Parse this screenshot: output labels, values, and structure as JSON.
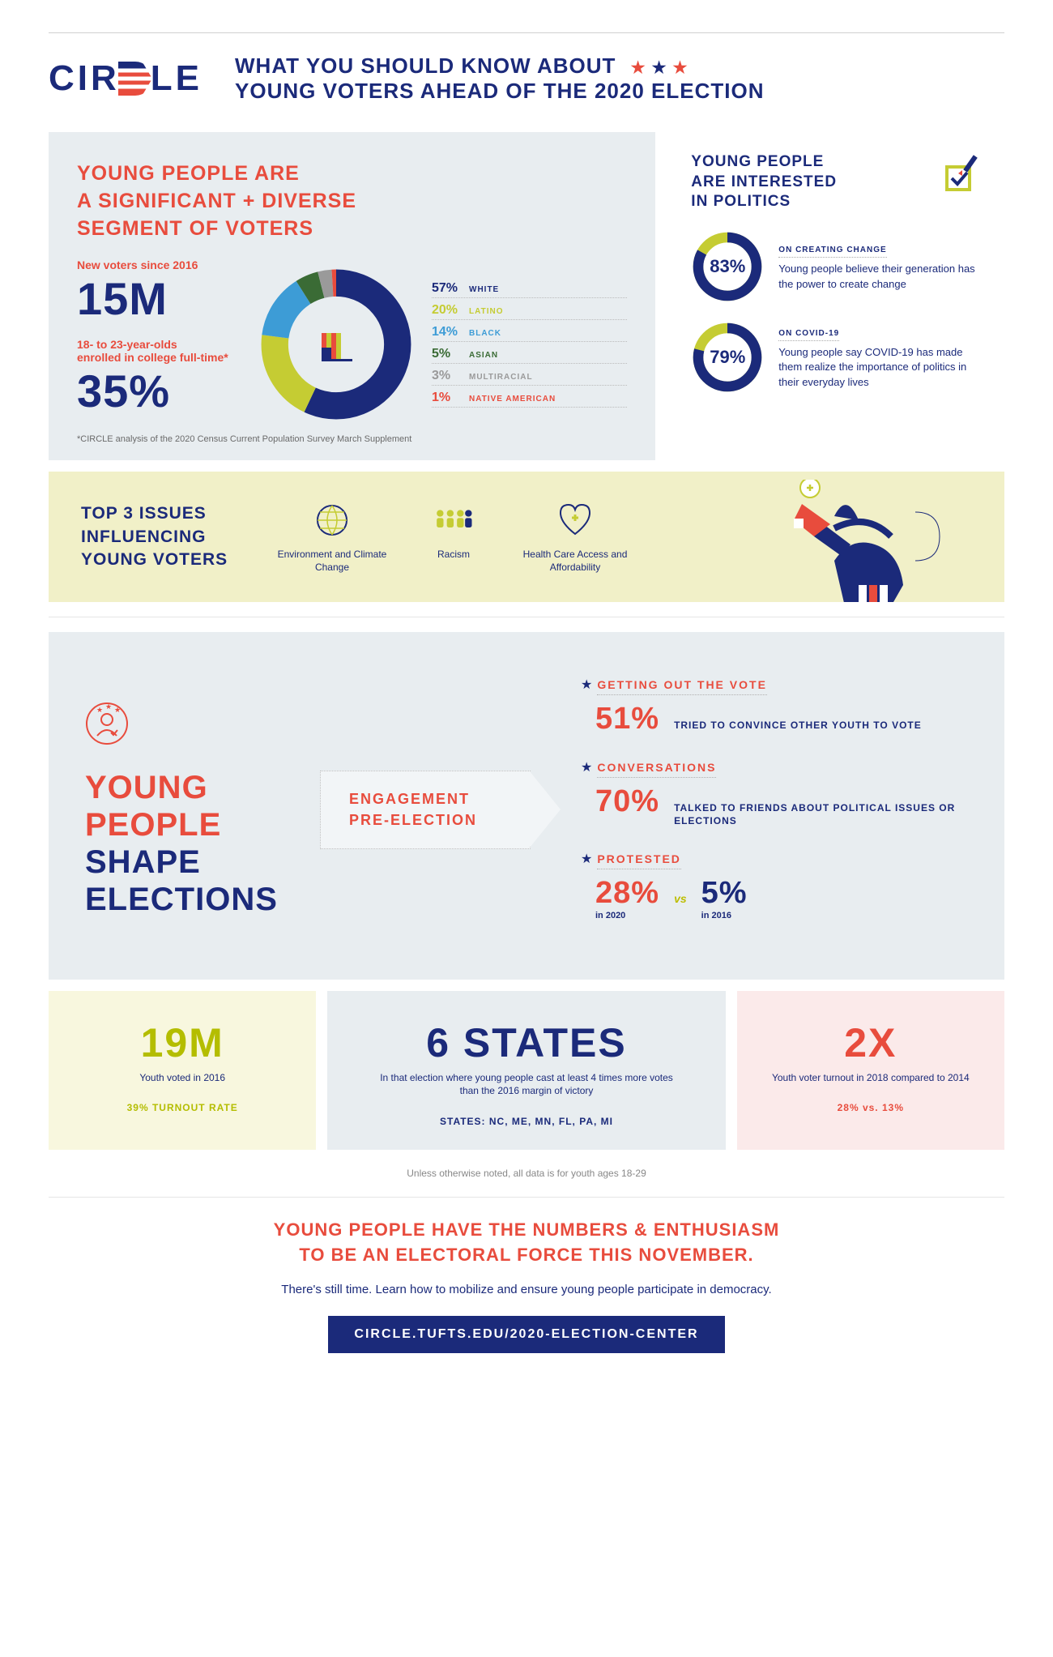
{
  "colors": {
    "navy": "#1b2a7a",
    "red": "#e84c3d",
    "olive": "#b4bd00",
    "lime": "#c5cc33",
    "blue": "#3d9cd6",
    "palegray": "#e8edf0",
    "palelime": "#f1f0c8",
    "palepink": "#fbeaea",
    "paleyellow": "#f8f7de"
  },
  "header": {
    "logo": "CIRCLE",
    "title_l1": "WHAT YOU SHOULD KNOW ABOUT",
    "title_l2": "YOUNG VOTERS AHEAD OF THE 2020 ELECTION"
  },
  "panel_diverse": {
    "title_l1": "YOUNG PEOPLE ARE",
    "title_l2": "A SIGNIFICANT + DIVERSE",
    "title_l3": "SEGMENT OF VOTERS",
    "stat1_label": "New voters since 2016",
    "stat1_value": "15M",
    "stat2_label_l1": "18- to 23-year-olds",
    "stat2_label_l2": "enrolled in college full-time*",
    "stat2_value": "35%",
    "footnote": "*CIRCLE analysis of the 2020 Census Current Population Survey March Supplement",
    "donut": {
      "slices": [
        {
          "pct": 57,
          "label": "WHITE",
          "color": "#1b2a7a"
        },
        {
          "pct": 20,
          "label": "LATINO",
          "color": "#c5cc33"
        },
        {
          "pct": 14,
          "label": "BLACK",
          "color": "#3d9cd6"
        },
        {
          "pct": 5,
          "label": "ASIAN",
          "color": "#3a6b35"
        },
        {
          "pct": 3,
          "label": "MULTIRACIAL",
          "color": "#9a9a9a"
        },
        {
          "pct": 1,
          "label": "NATIVE AMERICAN",
          "color": "#e84c3d"
        }
      ]
    }
  },
  "panel_interest": {
    "title_l1": "YOUNG PEOPLE",
    "title_l2": "ARE INTERESTED",
    "title_l3": "IN POLITICS",
    "gauges": [
      {
        "pct": 83,
        "subtitle": "ON CREATING CHANGE",
        "body": "Young people believe their generation has the power to create change"
      },
      {
        "pct": 79,
        "subtitle": "ON COVID-19",
        "body": "Young people say COVID-19 has made them realize the importance of politics in their everyday lives"
      }
    ],
    "gauge_track": "#c5cc33",
    "gauge_fill": "#1b2a7a"
  },
  "issues": {
    "title_l1": "TOP 3 ISSUES",
    "title_l2": "INFLUENCING",
    "title_l3": "YOUNG VOTERS",
    "items": [
      {
        "label": "Environment and Climate Change",
        "icon": "globe"
      },
      {
        "label": "Racism",
        "icon": "people"
      },
      {
        "label": "Health Care Access and Affordability",
        "icon": "heart"
      }
    ]
  },
  "shape": {
    "title_word1": "YOUNG",
    "title_word2": "PEOPLE",
    "title_word3": "SHAPE",
    "title_word4": "ELECTIONS",
    "mid_l1": "ENGAGEMENT",
    "mid_l2": "PRE-ELECTION",
    "engagement": [
      {
        "head": "GETTING OUT THE VOTE",
        "pct": "51%",
        "desc": "TRIED TO CONVINCE OTHER YOUTH TO VOTE"
      },
      {
        "head": "CONVERSATIONS",
        "pct": "70%",
        "desc": "TALKED TO FRIENDS ABOUT POLITICAL ISSUES OR ELECTIONS"
      }
    ],
    "protested": {
      "head": "PROTESTED",
      "p1": "28%",
      "p1_sub": "in 2020",
      "vs": "vs",
      "p2": "5%",
      "p2_sub": "in 2016"
    }
  },
  "cards": {
    "c1": {
      "big": "19M",
      "sub": "Youth voted in 2016",
      "foot": "39% TURNOUT RATE"
    },
    "c2": {
      "big": "6 STATES",
      "sub": "In that election where young people cast at least 4 times more votes than the 2016 margin of victory",
      "foot": "STATES: NC, ME, MN, FL, PA, MI"
    },
    "c3": {
      "big": "2X",
      "sub": "Youth voter turnout in 2018 compared to 2014",
      "foot": "28% vs. 13%"
    }
  },
  "note": "Unless otherwise noted, all data is for youth ages 18-29",
  "footer": {
    "title_l1": "YOUNG PEOPLE HAVE THE NUMBERS & ENTHUSIASM",
    "title_l2": "TO BE AN ELECTORAL FORCE THIS NOVEMBER.",
    "sub": "There's still time. Learn how to mobilize and ensure young people participate in democracy.",
    "btn": "CIRCLE.TUFTS.EDU/2020-ELECTION-CENTER"
  }
}
